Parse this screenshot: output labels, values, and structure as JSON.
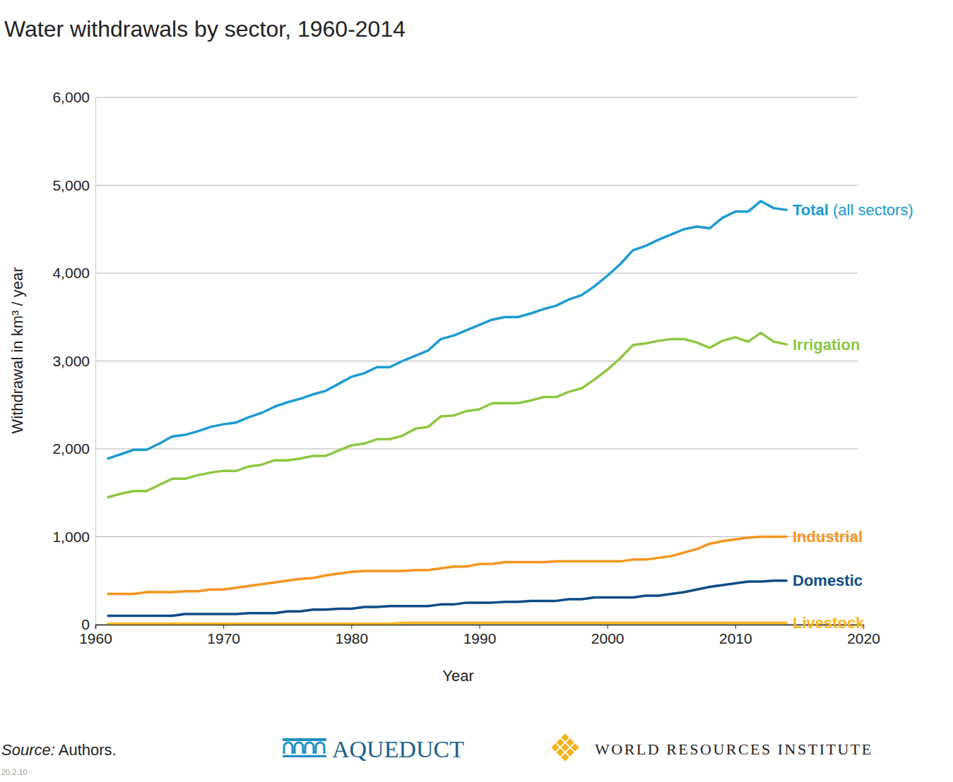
{
  "chart_data": {
    "type": "line",
    "title": "Water withdrawals by sector, 1960-2014",
    "x_label": "Year",
    "y_label": "Withdrawal in km³ / year",
    "x": [
      1961,
      1962,
      1963,
      1964,
      1965,
      1966,
      1967,
      1968,
      1969,
      1970,
      1971,
      1972,
      1973,
      1974,
      1975,
      1976,
      1977,
      1978,
      1979,
      1980,
      1981,
      1982,
      1983,
      1984,
      1985,
      1986,
      1987,
      1988,
      1989,
      1990,
      1991,
      1992,
      1993,
      1994,
      1995,
      1996,
      1997,
      1998,
      1999,
      2000,
      2001,
      2002,
      2003,
      2004,
      2005,
      2006,
      2007,
      2008,
      2009,
      2010,
      2011,
      2012,
      2013,
      2014
    ],
    "series": [
      {
        "name": "Total (all sectors)",
        "color": "#1b9bd1",
        "values": [
          1890,
          1940,
          1990,
          1990,
          2060,
          2140,
          2160,
          2200,
          2250,
          2280,
          2300,
          2360,
          2410,
          2480,
          2530,
          2570,
          2620,
          2660,
          2740,
          2820,
          2860,
          2930,
          2930,
          3000,
          3060,
          3120,
          3250,
          3290,
          3350,
          3410,
          3470,
          3500,
          3500,
          3540,
          3590,
          3630,
          3700,
          3750,
          3850,
          3970,
          4100,
          4260,
          4310,
          4380,
          4440,
          4500,
          4530,
          4510,
          4630,
          4700,
          4700,
          4820,
          4740,
          4720
        ]
      },
      {
        "name": "Irrigation",
        "color": "#8dc63f",
        "values": [
          1450,
          1490,
          1520,
          1520,
          1590,
          1660,
          1660,
          1700,
          1730,
          1750,
          1750,
          1800,
          1820,
          1870,
          1870,
          1890,
          1920,
          1920,
          1980,
          2040,
          2060,
          2110,
          2110,
          2150,
          2230,
          2250,
          2370,
          2380,
          2430,
          2450,
          2520,
          2520,
          2520,
          2550,
          2590,
          2590,
          2650,
          2690,
          2790,
          2900,
          3030,
          3180,
          3200,
          3230,
          3250,
          3250,
          3210,
          3150,
          3230,
          3270,
          3220,
          3320,
          3220,
          3190
        ]
      },
      {
        "name": "Industrial",
        "color": "#f7941d",
        "values": [
          350,
          350,
          350,
          370,
          370,
          370,
          380,
          380,
          400,
          400,
          420,
          440,
          460,
          480,
          500,
          520,
          530,
          560,
          580,
          600,
          610,
          610,
          610,
          610,
          620,
          620,
          640,
          660,
          660,
          690,
          690,
          710,
          710,
          710,
          710,
          720,
          720,
          720,
          720,
          720,
          720,
          740,
          740,
          760,
          780,
          820,
          860,
          920,
          950,
          970,
          990,
          1000,
          1000,
          1000
        ]
      },
      {
        "name": "Domestic",
        "color": "#0d4c85",
        "values": [
          100,
          100,
          100,
          100,
          100,
          100,
          120,
          120,
          120,
          120,
          120,
          130,
          130,
          130,
          150,
          150,
          170,
          170,
          180,
          180,
          200,
          200,
          210,
          210,
          210,
          210,
          230,
          230,
          250,
          250,
          250,
          260,
          260,
          270,
          270,
          270,
          290,
          290,
          310,
          310,
          310,
          310,
          330,
          330,
          350,
          370,
          400,
          430,
          450,
          470,
          490,
          490,
          500,
          500
        ]
      },
      {
        "name": "Livestock",
        "color": "#fbb41a",
        "values": [
          10,
          10,
          10,
          10,
          10,
          10,
          10,
          10,
          10,
          10,
          10,
          10,
          10,
          10,
          10,
          10,
          10,
          10,
          10,
          10,
          10,
          10,
          10,
          20,
          20,
          20,
          20,
          20,
          20,
          20,
          20,
          20,
          20,
          20,
          20,
          20,
          20,
          20,
          20,
          20,
          20,
          20,
          20,
          20,
          20,
          20,
          20,
          20,
          20,
          20,
          20,
          20,
          20,
          20
        ]
      }
    ],
    "xlim": [
      1960,
      2020
    ],
    "xticks": [
      1960,
      1970,
      1980,
      1990,
      2000,
      2010,
      2020
    ],
    "ylim": [
      0,
      6000
    ],
    "yticks": [
      0,
      {
        "value": 1000,
        "label": "1,000"
      },
      {
        "value": 2000,
        "label": "2,000"
      },
      {
        "value": 3000,
        "label": "3,000"
      },
      {
        "value": 4000,
        "label": "4,000"
      },
      {
        "value": 5000,
        "label": "5,000"
      },
      {
        "value": 6000,
        "label": "6,000"
      }
    ],
    "grid": true,
    "source": "Source: Authors.",
    "logos": [
      "AQUEDUCT",
      "WORLD RESOURCES INSTITUTE"
    ],
    "footnote": "20.2.10"
  }
}
